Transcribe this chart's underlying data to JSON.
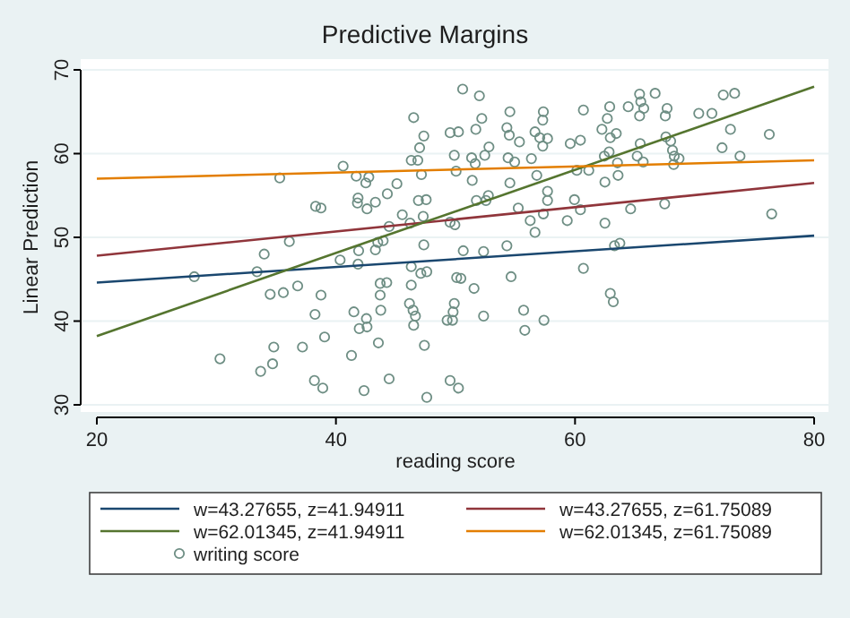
{
  "chart_data": {
    "type": "line",
    "title": "Predictive Margins",
    "xlabel": "reading score",
    "ylabel": "Linear Prediction",
    "xlim": [
      20,
      80
    ],
    "ylim": [
      30,
      70
    ],
    "xticks": [
      20,
      40,
      60,
      80
    ],
    "yticks": [
      30,
      40,
      50,
      60,
      70
    ],
    "grid": "y",
    "legend": "bottom",
    "line_style": "solid",
    "series": [
      {
        "name": "w=43.27655, z=41.94911",
        "color": "#1a476f",
        "x": [
          20,
          80
        ],
        "values": [
          44.6,
          50.2
        ]
      },
      {
        "name": "w=43.27655, z=61.75089",
        "color": "#90353b",
        "x": [
          20,
          80
        ],
        "values": [
          47.8,
          56.5
        ]
      },
      {
        "name": "w=62.01345, z=41.94911",
        "color": "#55752f",
        "x": [
          20,
          80
        ],
        "values": [
          38.2,
          68
        ]
      },
      {
        "name": "w=62.01345, z=61.75089",
        "color": "#e37e00",
        "x": [
          20,
          80
        ],
        "values": [
          57,
          59.2
        ]
      },
      {
        "name": "writing score",
        "color": "#6e8e84",
        "type": "scatter",
        "marker": "circle",
        "x": [
          28.15,
          30.3,
          33.7,
          34.0,
          33.4,
          34.5,
          34.7,
          34.8,
          35.3,
          35.6,
          36.1,
          36.8,
          37.2,
          38.3,
          38.75,
          38.75,
          38.25,
          39.05,
          38.2,
          38.9,
          40.35,
          40.6,
          41.3,
          41.5,
          41.8,
          41.85,
          41.7,
          41.95,
          41.85,
          41.9,
          42.35,
          42.5,
          42.6,
          42.55,
          42.6,
          42.75,
          43.3,
          43.3,
          43.5,
          43.55,
          43.7,
          43.75,
          43.7,
          43.95,
          44.3,
          44.45,
          44.25,
          44.45,
          45.1,
          45.55,
          46.2,
          46.3,
          46.15,
          46.3,
          46.5,
          46.3,
          46.85,
          47.0,
          47.35,
          47.15,
          46.9,
          47.55,
          46.45,
          46.65,
          46.5,
          47.3,
          47.35,
          47.1,
          47.4,
          47.6,
          47.6,
          50.6,
          52.0,
          49.55,
          50.25,
          51.7,
          52.2,
          52.8,
          49.9,
          51.35,
          51.65,
          52.45,
          50.05,
          51.4,
          51.75,
          52.55,
          52.75,
          49.55,
          49.95,
          50.65,
          52.35,
          50.1,
          50.45,
          51.55,
          49.9,
          49.8,
          49.3,
          49.75,
          52.35,
          49.55,
          50.25,
          54.55,
          54.3,
          54.5,
          55.35,
          54.4,
          54.95,
          54.55,
          55.25,
          54.3,
          54.65,
          55.7,
          55.8,
          57.35,
          57.3,
          56.65,
          57.05,
          57.3,
          57.7,
          56.35,
          56.8,
          57.7,
          57.7,
          57.35,
          56.25,
          56.65,
          57.4,
          59.6,
          60.45,
          60.7,
          60.15,
          61.15,
          59.95,
          60.45,
          59.35,
          60.7,
          62.25,
          62.7,
          62.9,
          63.45,
          62.95,
          62.85,
          62.45,
          63.55,
          63.6,
          62.5,
          62.5,
          63.3,
          63.75,
          62.95,
          63.2,
          64.45,
          65.4,
          65.5,
          65.4,
          65.75,
          65.45,
          65.2,
          65.7,
          64.65,
          66.7,
          67.55,
          67.7,
          67.6,
          68.0,
          68.15,
          68.3,
          68.25,
          68.7,
          67.5,
          70.35,
          71.45,
          72.4,
          73.35,
          73.0,
          72.3,
          73.8,
          76.25,
          76.45
        ],
        "values": [
          45.3,
          35.5,
          34.0,
          48.0,
          45.9,
          43.2,
          34.9,
          36.9,
          57.1,
          43.4,
          49.5,
          44.2,
          36.9,
          53.7,
          53.5,
          43.1,
          40.8,
          38.1,
          32.9,
          32.0,
          47.3,
          58.5,
          35.9,
          41.1,
          54.1,
          54.7,
          57.3,
          39.1,
          46.8,
          48.4,
          31.7,
          56.5,
          53.4,
          40.3,
          39.3,
          57.2,
          54.2,
          48.5,
          49.4,
          37.4,
          43.1,
          41.3,
          44.5,
          49.6,
          55.2,
          33.1,
          44.6,
          51.3,
          56.4,
          52.7,
          51.7,
          44.3,
          42.1,
          46.5,
          64.3,
          59.2,
          59.2,
          60.7,
          62.1,
          57.5,
          54.4,
          54.5,
          41.3,
          40.6,
          39.5,
          52.5,
          49.1,
          45.7,
          37.1,
          30.9,
          45.9,
          67.7,
          66.9,
          62.5,
          62.6,
          62.9,
          64.2,
          60.8,
          59.8,
          59.5,
          58.8,
          59.8,
          57.9,
          56.8,
          54.4,
          54.4,
          55.0,
          51.8,
          51.5,
          48.4,
          48.3,
          45.2,
          45.1,
          43.9,
          42.1,
          41.1,
          40.1,
          40.1,
          40.6,
          32.9,
          32.0,
          65.0,
          63.1,
          62.2,
          61.4,
          59.5,
          59.0,
          56.5,
          53.5,
          49.0,
          45.3,
          41.3,
          38.9,
          65.0,
          64.0,
          62.6,
          61.9,
          60.9,
          61.8,
          59.4,
          57.4,
          55.5,
          54.4,
          52.8,
          52.0,
          50.6,
          40.1,
          61.2,
          61.6,
          65.2,
          58.0,
          58.0,
          54.5,
          53.3,
          52.0,
          46.3,
          62.9,
          64.2,
          65.6,
          62.4,
          61.9,
          60.2,
          59.7,
          58.9,
          57.4,
          56.6,
          51.7,
          49.0,
          49.3,
          43.3,
          42.3,
          65.6,
          67.1,
          66.2,
          64.5,
          65.4,
          61.2,
          59.7,
          59.0,
          53.4,
          67.2,
          64.5,
          65.4,
          62.0,
          61.5,
          60.4,
          59.7,
          58.7,
          59.4,
          54.0,
          64.8,
          64.8,
          67.0,
          67.2,
          62.9,
          60.7,
          59.7,
          62.3,
          52.8
        ]
      }
    ]
  }
}
